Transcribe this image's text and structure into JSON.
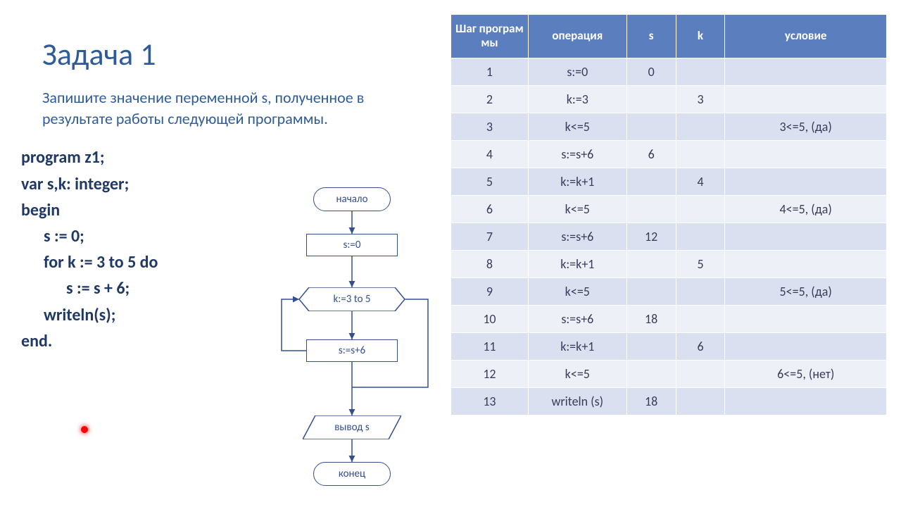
{
  "title": "Задача 1",
  "question": "Запишите значение переменной s, полученное в результате работы следующей программы.",
  "code": {
    "l1a": "program",
    "l1b": " z1;",
    "l2a": "var",
    "l2b": " s,k: ",
    "l2c": "integer",
    "l2d": ";",
    "l3": "begin",
    "l4": "s := 0;",
    "l5a": "for",
    "l5b": " k := 3 ",
    "l5c": "to",
    "l5d": " 5 ",
    "l5e": "do",
    "l6": "s := s + 6;",
    "l7a": "writeln",
    "l7b": "(s);",
    "l8a": "end",
    "l8b": "."
  },
  "flowchart": {
    "start": "начало",
    "init": "s:=0",
    "loop": "k:=3 to 5",
    "body": "s:=s+6",
    "out": "вывод s",
    "end": "конец",
    "colors": {
      "line": "#334f8f",
      "text": "#334f8f",
      "arrow": "#334f8f"
    },
    "y": {
      "start": 6,
      "init": 72,
      "loop": 148,
      "body": 222,
      "out": 330,
      "end": 396
    }
  },
  "table": {
    "header_bg": "#5b7ebf",
    "header_fg": "#ffffff",
    "row_odd_bg": "#dbe0f0",
    "row_even_bg": "#eef0f8",
    "columns": [
      "Шаг програм мы",
      "операция",
      "s",
      "k",
      "условие"
    ],
    "rows": [
      [
        "1",
        "s:=0",
        "0",
        "",
        ""
      ],
      [
        "2",
        "k:=3",
        "",
        "3",
        ""
      ],
      [
        "3",
        "k<=5",
        "",
        "",
        "3<=5, (да)"
      ],
      [
        "4",
        "s:=s+6",
        "6",
        "",
        ""
      ],
      [
        "5",
        "k:=k+1",
        "",
        "4",
        ""
      ],
      [
        "6",
        "k<=5",
        "",
        "",
        "4<=5, (да)"
      ],
      [
        "7",
        "s:=s+6",
        "12",
        "",
        ""
      ],
      [
        "8",
        "k:=k+1",
        "",
        "5",
        ""
      ],
      [
        "9",
        "k<=5",
        "",
        "",
        "5<=5, (да)"
      ],
      [
        "10",
        "s:=s+6",
        "18",
        "",
        ""
      ],
      [
        "11",
        "k:=k+1",
        "",
        "6",
        ""
      ],
      [
        "12",
        "k<=5",
        "",
        "",
        "6<=5, (нет)"
      ],
      [
        "13",
        "writeln (s)",
        "18",
        "",
        ""
      ]
    ]
  }
}
